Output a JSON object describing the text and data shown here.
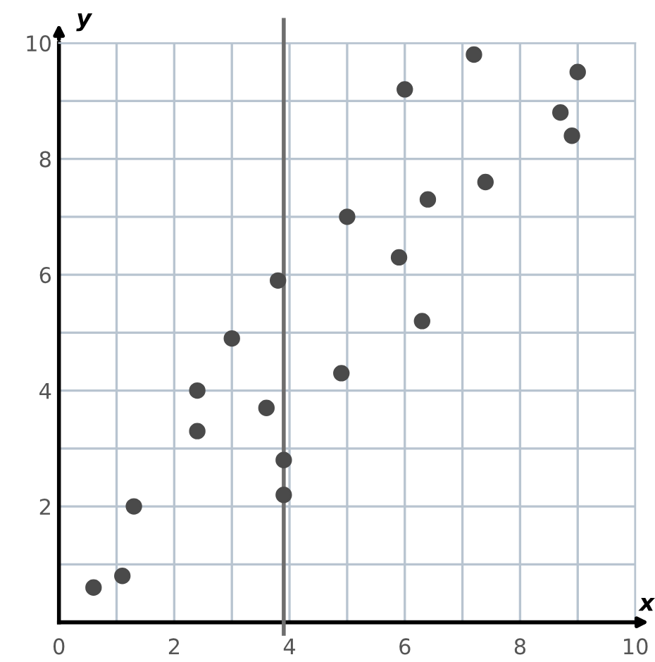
{
  "chart_data": {
    "type": "scatter",
    "xlabel": "x",
    "ylabel": "y",
    "x": [
      0.6,
      1.1,
      1.3,
      2.4,
      2.4,
      3.0,
      3.6,
      3.8,
      3.9,
      3.9,
      4.9,
      5.0,
      5.9,
      6.0,
      6.3,
      6.4,
      7.2,
      7.4,
      8.7,
      8.9,
      9.0
    ],
    "series": [
      {
        "color": "#4a4a4a",
        "values": [
          0.6,
          0.8,
          2.0,
          4.0,
          3.3,
          4.9,
          3.7,
          5.9,
          2.8,
          2.2,
          4.3,
          7.0,
          6.3,
          9.2,
          5.2,
          7.3,
          9.8,
          7.6,
          8.8,
          8.4,
          9.5
        ]
      }
    ],
    "marker": "circle",
    "xlim": [
      0,
      10
    ],
    "ylim": [
      0,
      10
    ],
    "xticks": [
      0,
      {
        "value": 1,
        "label": null
      },
      2,
      {
        "value": 3,
        "label": null
      },
      4,
      {
        "value": 5,
        "label": null
      },
      6,
      {
        "value": 7,
        "label": null
      },
      8,
      {
        "value": 9,
        "label": null
      },
      10
    ],
    "yticks": [
      {
        "value": 0,
        "label": null
      },
      {
        "value": 1,
        "label": null
      },
      2,
      {
        "value": 3,
        "label": null
      },
      4,
      {
        "value": 5,
        "label": null
      },
      6,
      {
        "value": 7,
        "label": null
      },
      8,
      {
        "value": 9,
        "label": null
      },
      10
    ],
    "grid": true,
    "ref_lines": [
      {
        "axis": "x",
        "value": 3.9,
        "label": null,
        "color": "#6e6e6e"
      }
    ]
  }
}
